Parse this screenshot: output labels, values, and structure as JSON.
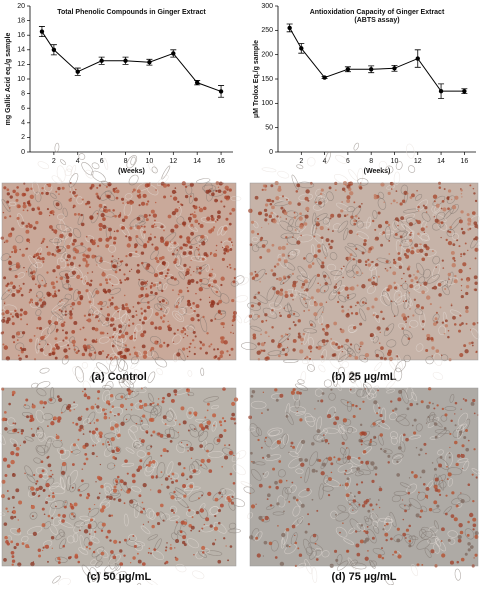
{
  "chart_data": [
    {
      "type": "line",
      "title": "Total Phenolic Compounds in Ginger Extract",
      "x_label": "(Weeks)",
      "y_label": "mg Gallic Acid eq./g sample",
      "x": [
        1,
        2,
        4,
        6,
        8,
        10,
        12,
        14,
        16
      ],
      "values": [
        16.5,
        14,
        11,
        12.5,
        12.5,
        12.3,
        13.5,
        9.5,
        8.3
      ],
      "errors": [
        0.7,
        0.7,
        0.5,
        0.5,
        0.5,
        0.4,
        0.5,
        0.3,
        0.8
      ],
      "color": "#000000",
      "xlim": [
        0,
        17
      ],
      "xticks": [
        2,
        4,
        6,
        8,
        10,
        12,
        14,
        16
      ],
      "ylim": [
        0,
        20
      ],
      "yticks": [
        0,
        2,
        4,
        6,
        8,
        10,
        12,
        14,
        16,
        18,
        20
      ]
    },
    {
      "type": "line",
      "title": "Antioxidation Capacity of Ginger Extract",
      "subtitle": "(ABTS assay)",
      "x_label": "(Weeks)",
      "y_label": "µM Trolox Eq./g sample",
      "x": [
        1,
        2,
        4,
        6,
        8,
        10,
        12,
        14,
        16
      ],
      "values": [
        255,
        213,
        153,
        170,
        170,
        172,
        192,
        125,
        125
      ],
      "errors": [
        8,
        10,
        2,
        5,
        7,
        6,
        18,
        15,
        5
      ],
      "color": "#000000",
      "xlim": [
        0,
        17
      ],
      "xticks": [
        2,
        4,
        6,
        8,
        10,
        12,
        14,
        16
      ],
      "ylim": [
        0,
        300
      ],
      "yticks": [
        0,
        50,
        100,
        150,
        200,
        250,
        300
      ]
    }
  ],
  "images": [
    {
      "caption": "(a)   Control"
    },
    {
      "caption": "(b) 25 µg/mL"
    },
    {
      "caption": "(c) 50 µg/mL"
    },
    {
      "caption": "(d) 75 µg/mL"
    }
  ]
}
